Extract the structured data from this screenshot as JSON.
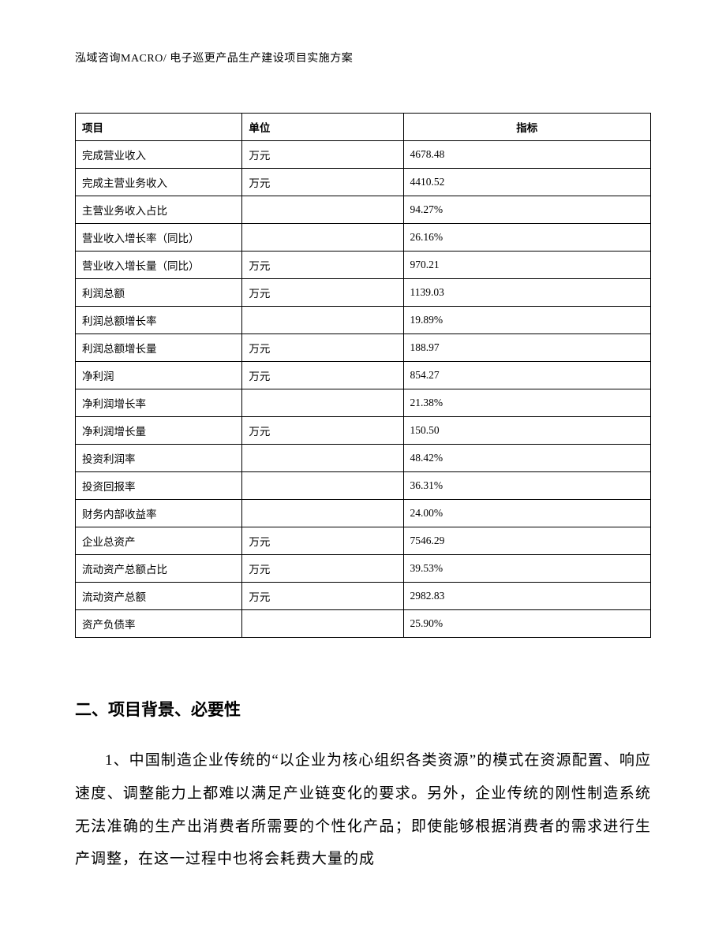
{
  "header": "泓域咨询MACRO/ 电子巡更产品生产建设项目实施方案",
  "table": {
    "columns": [
      "项目",
      "单位",
      "指标"
    ],
    "col_widths": [
      "29%",
      "28%",
      "43%"
    ],
    "border_color": "#000000",
    "font_size": 13.5,
    "rows": [
      {
        "item": "完成营业收入",
        "unit": "万元",
        "value": "4678.48"
      },
      {
        "item": "完成主营业务收入",
        "unit": "万元",
        "value": "4410.52"
      },
      {
        "item": "主营业务收入占比",
        "unit": "",
        "value": "94.27%"
      },
      {
        "item": "营业收入增长率（同比）",
        "unit": "",
        "value": "26.16%"
      },
      {
        "item": "营业收入增长量（同比）",
        "unit": "万元",
        "value": "970.21"
      },
      {
        "item": "利润总额",
        "unit": "万元",
        "value": "1139.03"
      },
      {
        "item": "利润总额增长率",
        "unit": "",
        "value": "19.89%"
      },
      {
        "item": "利润总额增长量",
        "unit": "万元",
        "value": "188.97"
      },
      {
        "item": "净利润",
        "unit": "万元",
        "value": "854.27"
      },
      {
        "item": "净利润增长率",
        "unit": "",
        "value": "21.38%"
      },
      {
        "item": "净利润增长量",
        "unit": "万元",
        "value": "150.50"
      },
      {
        "item": "投资利润率",
        "unit": "",
        "value": "48.42%"
      },
      {
        "item": "投资回报率",
        "unit": "",
        "value": "36.31%"
      },
      {
        "item": "财务内部收益率",
        "unit": "",
        "value": "24.00%"
      },
      {
        "item": "企业总资产",
        "unit": "万元",
        "value": "7546.29"
      },
      {
        "item": "流动资产总额占比",
        "unit": "万元",
        "value": "39.53%"
      },
      {
        "item": "流动资产总额",
        "unit": "万元",
        "value": "2982.83"
      },
      {
        "item": "资产负债率",
        "unit": "",
        "value": "25.90%"
      }
    ]
  },
  "section": {
    "heading": "二、项目背景、必要性",
    "body": "1、中国制造企业传统的“以企业为核心组织各类资源”的模式在资源配置、响应速度、调整能力上都难以满足产业链变化的要求。另外，企业传统的刚性制造系统无法准确的生产出消费者所需要的个性化产品；即使能够根据消费者的需求进行生产调整，在这一过程中也将会耗费大量的成"
  },
  "colors": {
    "background": "#ffffff",
    "text": "#000000",
    "border": "#000000"
  },
  "typography": {
    "header_fontsize": 14,
    "table_fontsize": 13.5,
    "heading_fontsize": 21,
    "body_fontsize": 19,
    "body_line_height": 2.2
  }
}
